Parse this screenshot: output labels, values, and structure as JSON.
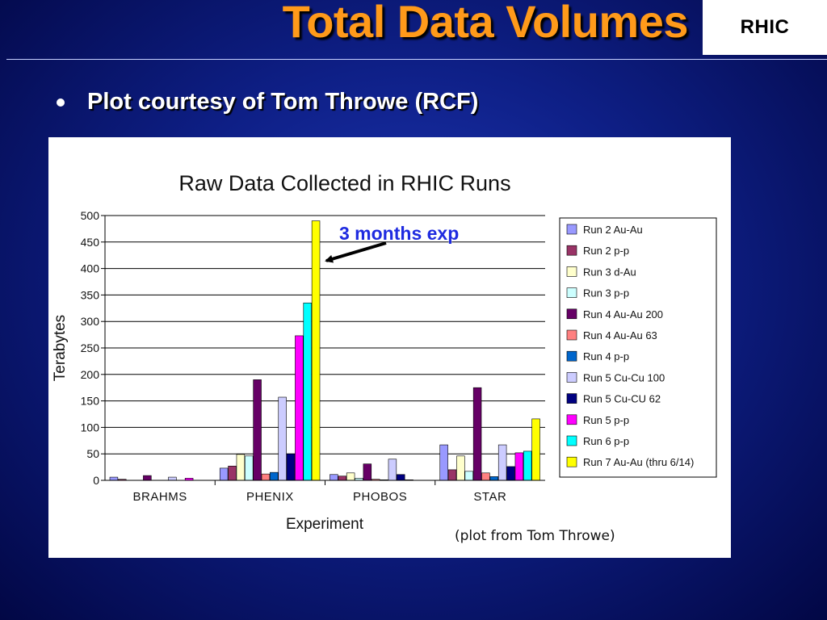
{
  "slide": {
    "title": "Total Data Volumes",
    "logo_text": "RHIC",
    "bullet": "Plot courtesy of Tom Throwe (RCF)",
    "callout": "3 months exp",
    "credit": "(plot from Tom Throwe)"
  },
  "chart_data": {
    "type": "bar",
    "title": "Raw Data Collected in RHIC Runs",
    "xlabel": "Experiment",
    "ylabel": "Terabytes",
    "ylim": [
      0,
      500
    ],
    "yticks": [
      0,
      50,
      100,
      150,
      200,
      250,
      300,
      350,
      400,
      450,
      500
    ],
    "grid": true,
    "legend_position": "right",
    "categories": [
      "BRAHMS",
      "PHENIX",
      "PHOBOS",
      "STAR"
    ],
    "series": [
      {
        "name": "Run 2 Au-Au",
        "color": "#9999ff",
        "values": [
          6,
          23,
          11,
          67
        ]
      },
      {
        "name": "Run 2 p-p",
        "color": "#993366",
        "values": [
          2,
          27,
          8,
          20
        ]
      },
      {
        "name": "Run 3 d-Au",
        "color": "#ffffcc",
        "values": [
          0,
          49,
          14,
          46
        ]
      },
      {
        "name": "Run 3 p-p",
        "color": "#ccffff",
        "values": [
          0,
          46,
          4,
          17
        ]
      },
      {
        "name": "Run 4 Au-Au 200",
        "color": "#660066",
        "values": [
          9,
          190,
          31,
          175
        ]
      },
      {
        "name": "Run 4 Au-Au 63",
        "color": "#ff8080",
        "values": [
          0,
          12,
          2,
          14
        ]
      },
      {
        "name": "Run 4 p-p",
        "color": "#0066cc",
        "values": [
          0,
          15,
          1,
          7
        ]
      },
      {
        "name": "Run 5 Cu-Cu 100",
        "color": "#ccccff",
        "values": [
          6,
          157,
          40,
          67
        ]
      },
      {
        "name": "Run 5 Cu-CU 62",
        "color": "#000080",
        "values": [
          0,
          50,
          11,
          26
        ]
      },
      {
        "name": "Run 5 p-p",
        "color": "#ff00ff",
        "values": [
          4,
          273,
          1,
          52
        ]
      },
      {
        "name": "Run 6 p-p",
        "color": "#00ffff",
        "values": [
          0,
          335,
          0,
          55
        ]
      },
      {
        "name": "Run 7 Au-Au (thru 6/14)",
        "color": "#ffff00",
        "values": [
          0,
          490,
          0,
          116
        ]
      }
    ]
  }
}
